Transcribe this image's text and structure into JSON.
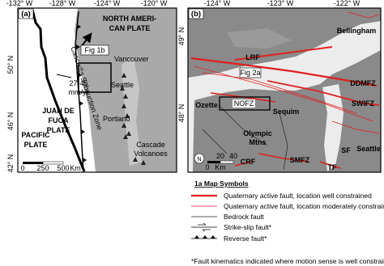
{
  "panel_a": {
    "label": "(a)",
    "lon_ticks": [
      "-132° W",
      "-128° W",
      "-124° W",
      "-120° W"
    ],
    "lat_ticks": [
      "50° N",
      "46° N",
      "42° N"
    ],
    "plate_north": [
      "NORTH AMERI-",
      "CAN PLATE"
    ],
    "inset_label": "Fig 1b",
    "cities": [
      "Vancouver",
      "Seattle",
      "Portland"
    ],
    "volcanoes": [
      "Cascade",
      "Volcanoes"
    ],
    "rate": [
      "27-45",
      "mm/yr"
    ],
    "subduction_zone": "Cascadia Subduction Zone",
    "plate_jdf": [
      "JUAN DE",
      "FUCA",
      "PLATE"
    ],
    "plate_pacific": [
      "PACIFIC",
      "PLATE"
    ],
    "scale": [
      "0",
      "250",
      "500",
      "Km"
    ]
  },
  "panel_b": {
    "label": "(b)",
    "lon_ticks": [
      "-124° W",
      "-123° W",
      "-122° W"
    ],
    "lat_ticks": [
      "49° N",
      "48° N"
    ],
    "places": {
      "bellingham": "Bellingham",
      "lrf": "LRF",
      "ddmfz": "DDMFZ",
      "fig2a": "Fig 2a",
      "nofz": "NOFZ",
      "ozette": "Ozette",
      "sequim": "Sequim",
      "swifz": "SWIFZ",
      "olympic": [
        "Olympic",
        "Mtns"
      ],
      "sf": "SF",
      "seattle": "Seattle",
      "crf": "CRF",
      "smfz": "SMFZ",
      "tf": "TF"
    },
    "north": "N",
    "scale": [
      "0",
      "20",
      "40",
      "Km"
    ]
  },
  "legend": {
    "title": "1a Map Symbols",
    "items": [
      "Quaternary active fault, location well constrained",
      "Quaternary active fault, location moderately constrained",
      "Bedrock fault",
      "Strike-slip fault*",
      "Reverse fault*"
    ],
    "footnote": "*Fault kinematics indicated where motion sense is well constrained"
  }
}
